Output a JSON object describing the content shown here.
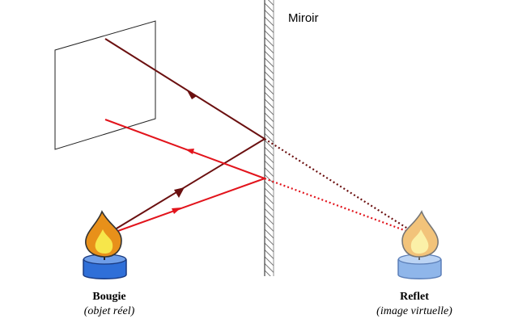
{
  "labels": {
    "mirror": "Miroir",
    "candle_title": "Bougie",
    "candle_subtitle": "(objet réel)",
    "reflection_title": "Reflet",
    "reflection_subtitle": "(image virtuelle)"
  },
  "colors": {
    "ray_dark": "#6b1010",
    "ray_red": "#e2141c",
    "mirror_hatch": "#555555",
    "screen_outline": "#222222",
    "flame_outer": "#e8901a",
    "flame_inner": "#f7e64a",
    "wax_real": "#2f6fd8",
    "wax_virtual": "#8fb6ea",
    "flame_virtual_outer": "#f2c37a",
    "flame_virtual_inner": "#fbf0a8"
  },
  "elements": {
    "mirror": "hatched-plane-mirror",
    "screen": "observation-screen",
    "candle": "candle-icon",
    "reflection": "candle-reflection-icon"
  }
}
